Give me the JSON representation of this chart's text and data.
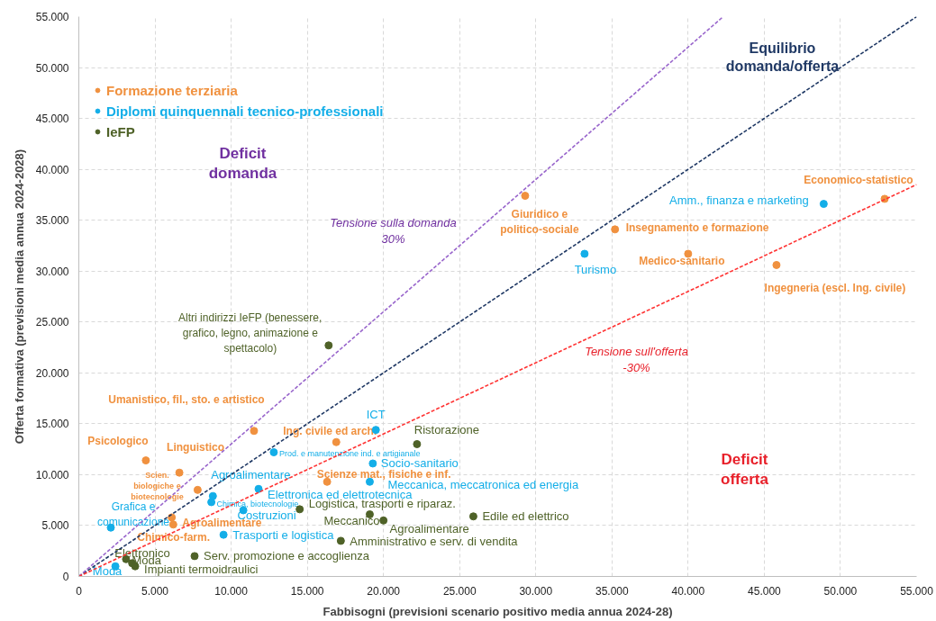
{
  "chart_data": {
    "type": "scatter",
    "xlabel": "Fabbisogni (previsioni scenario positivo media annua 2024-28)",
    "ylabel": "Offerta formativa (previsioni media annua 2024-2028)",
    "xlim": [
      0,
      55000
    ],
    "ylim": [
      0,
      55000
    ],
    "xticks": [
      0,
      {
        "value": 5000,
        "label": "5.000"
      },
      {
        "value": 10000,
        "label": "10.000"
      },
      {
        "value": 15000,
        "label": "15.000"
      },
      {
        "value": 20000,
        "label": "20.000"
      },
      {
        "value": 25000,
        "label": "25.000"
      },
      {
        "value": 30000,
        "label": "30.000"
      },
      {
        "value": 35000,
        "label": "35.000"
      },
      {
        "value": 40000,
        "label": "40.000"
      },
      {
        "value": 45000,
        "label": "45.000"
      },
      {
        "value": 50000,
        "label": "50.000"
      },
      {
        "value": 55000,
        "label": "55.000"
      }
    ],
    "yticks": [
      0,
      {
        "value": 5000,
        "label": "5.000"
      },
      {
        "value": 10000,
        "label": "10.000"
      },
      {
        "value": 15000,
        "label": "15.000"
      },
      {
        "value": 20000,
        "label": "20.000"
      },
      {
        "value": 25000,
        "label": "25.000"
      },
      {
        "value": 30000,
        "label": "30.000"
      },
      {
        "value": 35000,
        "label": "35.000"
      },
      {
        "value": 40000,
        "label": "40.000"
      },
      {
        "value": 45000,
        "label": "45.000"
      },
      {
        "value": 50000,
        "label": "50.000"
      },
      {
        "value": 55000,
        "label": "55.000"
      }
    ],
    "grid": true,
    "legend": "top left",
    "marker": "circle",
    "series": [
      {
        "name": "Formazione terziaria",
        "color": "#f0913f",
        "x": [
          52900,
          29300,
          35200,
          40000,
          45800,
          11500,
          16900,
          4400,
          6600,
          7800,
          16300,
          6100,
          6200
        ],
        "values": [
          37100,
          37400,
          34100,
          31700,
          30600,
          14300,
          13200,
          11400,
          10200,
          8500,
          9300,
          5800,
          5100
        ],
        "value_labels": [
          "Economico-statistico",
          "Giuridico e\npolitico-sociale",
          "Insegnamento e formazione",
          "Medico-sanitario",
          "Ingegneria (escl. Ing. civile)",
          "Umanistico, fil., sto. e artistico",
          "Ing. civile ed arch.",
          "Psicologico",
          "Linguistico",
          "Scien.\nbiologiche e\nbiotecnologie",
          "Scienze mat., fisiche e inf.",
          "Chimico-farm.",
          "Agroalimentare"
        ]
      },
      {
        "name": "Diplomi quinquennali tecnico-professionali",
        "color": "#13aee8",
        "x": [
          48900,
          33200,
          19500,
          12800,
          19300,
          19100,
          8800,
          11800,
          8700,
          10800,
          9500,
          2100,
          2400
        ],
        "values": [
          36600,
          31700,
          14400,
          12200,
          11100,
          9300,
          7900,
          8600,
          7300,
          6500,
          4100,
          4800,
          1000
        ],
        "value_labels": [
          "Amm., finanza e marketing",
          "Turismo",
          "ICT",
          "Prod. e manutenzione ind. e artigianale",
          "Socio-sanitario",
          "Meccanica, meccatronica ed energia",
          "Agroalimentare",
          "Elettronica ed elettrotecnica",
          "Chimica, biotecnologie",
          "Costruzioni",
          "Trasporti e logistica",
          "Grafica e\ncomunicazione",
          "Moda"
        ]
      },
      {
        "name": "IeFP",
        "color": "#4f6228",
        "x": [
          16400,
          22200,
          14500,
          19100,
          20000,
          25900,
          17200,
          7600,
          3100,
          3500,
          3700
        ],
        "values": [
          22700,
          13000,
          6600,
          6100,
          5500,
          5900,
          3500,
          2000,
          1700,
          1300,
          1000
        ],
        "value_labels": [
          "Altri indirizzi IeFP (benessere,\ngrafico, legno, animazione e\nspettacolo)",
          "Ristorazione",
          "Logistica, trasporti e riparaz.",
          "Meccanico",
          "Agroalimentare",
          "Edile ed elettrico",
          "Amministrativo e serv. di vendita",
          "Serv. promozione e accoglienza",
          "Elettronico",
          "Moda",
          "Impianti termoidraulici"
        ]
      },
      {
        "type": "line",
        "marker": "none",
        "color": "#1f3864",
        "line_style": "dashed",
        "x": [
          0,
          55000
        ],
        "values": [
          0,
          55000
        ]
      },
      {
        "type": "line",
        "marker": "none",
        "color": "#9966cc",
        "line_style": "dashed",
        "x": [
          0,
          42300
        ],
        "values": [
          0,
          55000
        ]
      },
      {
        "type": "line",
        "marker": "none",
        "color": "#ff3333",
        "line_style": "dashed",
        "x": [
          0,
          55000
        ],
        "values": [
          0,
          38500
        ]
      }
    ],
    "annotations": [
      "Equilibrio\ndomanda/offerta",
      "Tensione sulla domanda\n30%",
      "Tensione sull'offerta\n-30%",
      "Deficit\ndomanda",
      "Deficit\nofferta"
    ]
  }
}
